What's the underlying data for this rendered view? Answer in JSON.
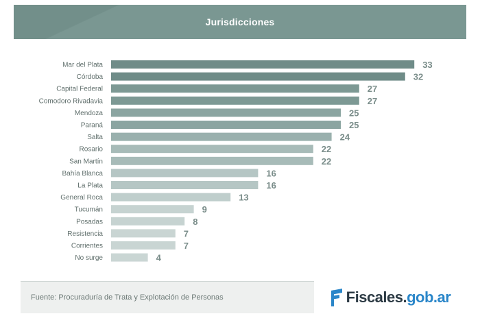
{
  "header": {
    "title": "Jurisdicciones"
  },
  "chart_data": {
    "type": "bar",
    "orientation": "horizontal",
    "title": "Jurisdicciones",
    "categories": [
      "Mar del Plata",
      "Córdoba",
      "Capital Federal",
      "Comodoro Rivadavia",
      "Mendoza",
      "Paraná",
      "Salta",
      "Rosario",
      "San Martín",
      "Bahía Blanca",
      "La Plata",
      "General Roca",
      "Tucumán",
      "Posadas",
      "Resistencia",
      "Corrientes",
      "No surge"
    ],
    "values": [
      33,
      32,
      27,
      27,
      25,
      25,
      24,
      22,
      22,
      16,
      16,
      13,
      9,
      8,
      7,
      7,
      4
    ],
    "colors": [
      "#6f8c88",
      "#6f8c88",
      "#7d9994",
      "#7d9994",
      "#8ba5a1",
      "#8ba5a1",
      "#99b0ad",
      "#a7bbb8",
      "#a7bbb8",
      "#b5c6c4",
      "#b5c6c4",
      "#bfcecc",
      "#c6d3d1",
      "#c6d3d1",
      "#c9d5d3",
      "#c9d5d3",
      "#cad6d4"
    ],
    "value_label_color": "#7a8d8a",
    "grid": false,
    "legend": "none"
  },
  "footer": {
    "source": "Fuente: Procuraduría de Trata y Explotación de Personas",
    "logo_text_a": "Fiscales.",
    "logo_text_b": "gob.ar"
  },
  "colors": {
    "header_bg": "#7a9792",
    "logo_dark": "#2c3a44",
    "logo_blue": "#2a86c9"
  }
}
